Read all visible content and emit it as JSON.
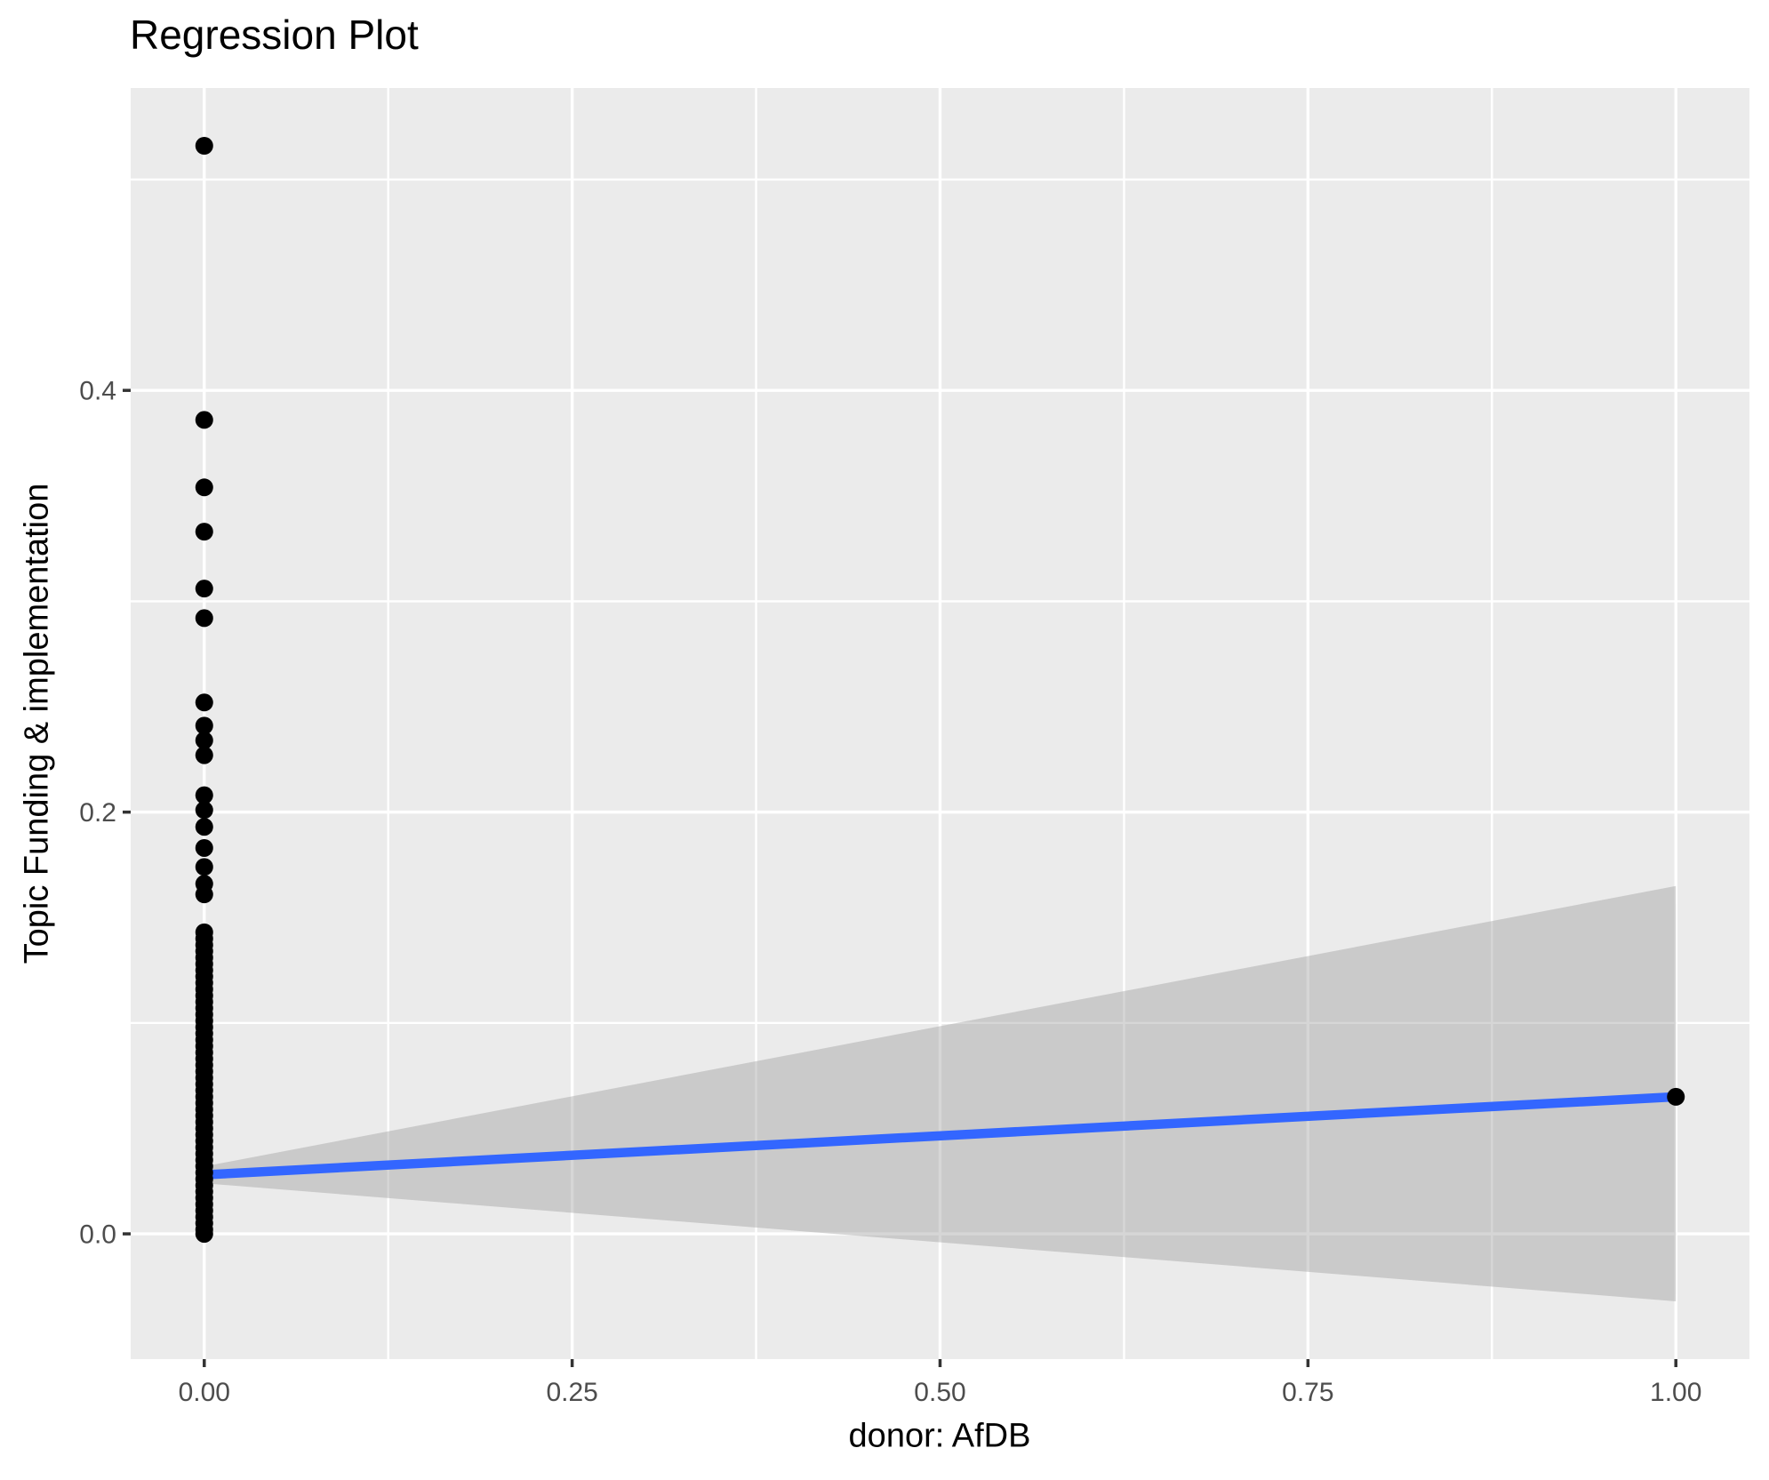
{
  "chart_data": {
    "type": "scatter",
    "title": "Regression Plot",
    "xlabel": "donor: AfDB",
    "ylabel": "Topic Funding & implementation",
    "legend": "none",
    "grid": "on",
    "x_domain": [
      -0.05,
      1.05
    ],
    "y_domain": [
      -0.0594,
      0.5434
    ],
    "x_ticks": [
      {
        "value": 0.0,
        "label": "0.00"
      },
      {
        "value": 0.25,
        "label": "0.25"
      },
      {
        "value": 0.5,
        "label": "0.50"
      },
      {
        "value": 0.75,
        "label": "0.75"
      },
      {
        "value": 1.0,
        "label": "1.00"
      }
    ],
    "y_ticks": [
      {
        "value": 0.0,
        "label": "0.0"
      },
      {
        "value": 0.2,
        "label": "0.2"
      },
      {
        "value": 0.4,
        "label": "0.4"
      }
    ],
    "x_minor": [
      0.125,
      0.375,
      0.625,
      0.875
    ],
    "y_minor": [
      0.1,
      0.3,
      0.5
    ],
    "points": {
      "x0_y_values": [
        0.516,
        0.386,
        0.354,
        0.333,
        0.306,
        0.292,
        0.252,
        0.241,
        0.234,
        0.227,
        0.208,
        0.201,
        0.193,
        0.183,
        0.174,
        0.166,
        0.161,
        0.143,
        0.14,
        0.137,
        0.134,
        0.131,
        0.128,
        0.125,
        0.122,
        0.119,
        0.116,
        0.113,
        0.11,
        0.107,
        0.104,
        0.101,
        0.098,
        0.095,
        0.092,
        0.089,
        0.086,
        0.083,
        0.08,
        0.077,
        0.074,
        0.071,
        0.068,
        0.065,
        0.062,
        0.059,
        0.056,
        0.053,
        0.05,
        0.047,
        0.044,
        0.041,
        0.038,
        0.035,
        0.032,
        0.029,
        0.026,
        0.023,
        0.02,
        0.017,
        0.014,
        0.011,
        0.008,
        0.005,
        0.002,
        0.0
      ],
      "x1_y_values": [
        0.065
      ]
    },
    "regression_line": {
      "x": [
        0,
        1
      ],
      "y": [
        0.028,
        0.065
      ]
    },
    "confidence_ribbon": {
      "x": [
        0,
        1
      ],
      "upper": [
        0.032,
        0.165
      ],
      "lower": [
        0.024,
        -0.032
      ]
    },
    "colors": {
      "panel_bg": "#EBEBEB",
      "gridline": "#FFFFFF",
      "point": "#000000",
      "regression_line": "#3366FF",
      "ribbon_fill": "#999999",
      "ribbon_opacity": 0.4,
      "tick_label": "#4D4D4D",
      "tick_mark": "#333333",
      "title_text": "#000000"
    }
  }
}
